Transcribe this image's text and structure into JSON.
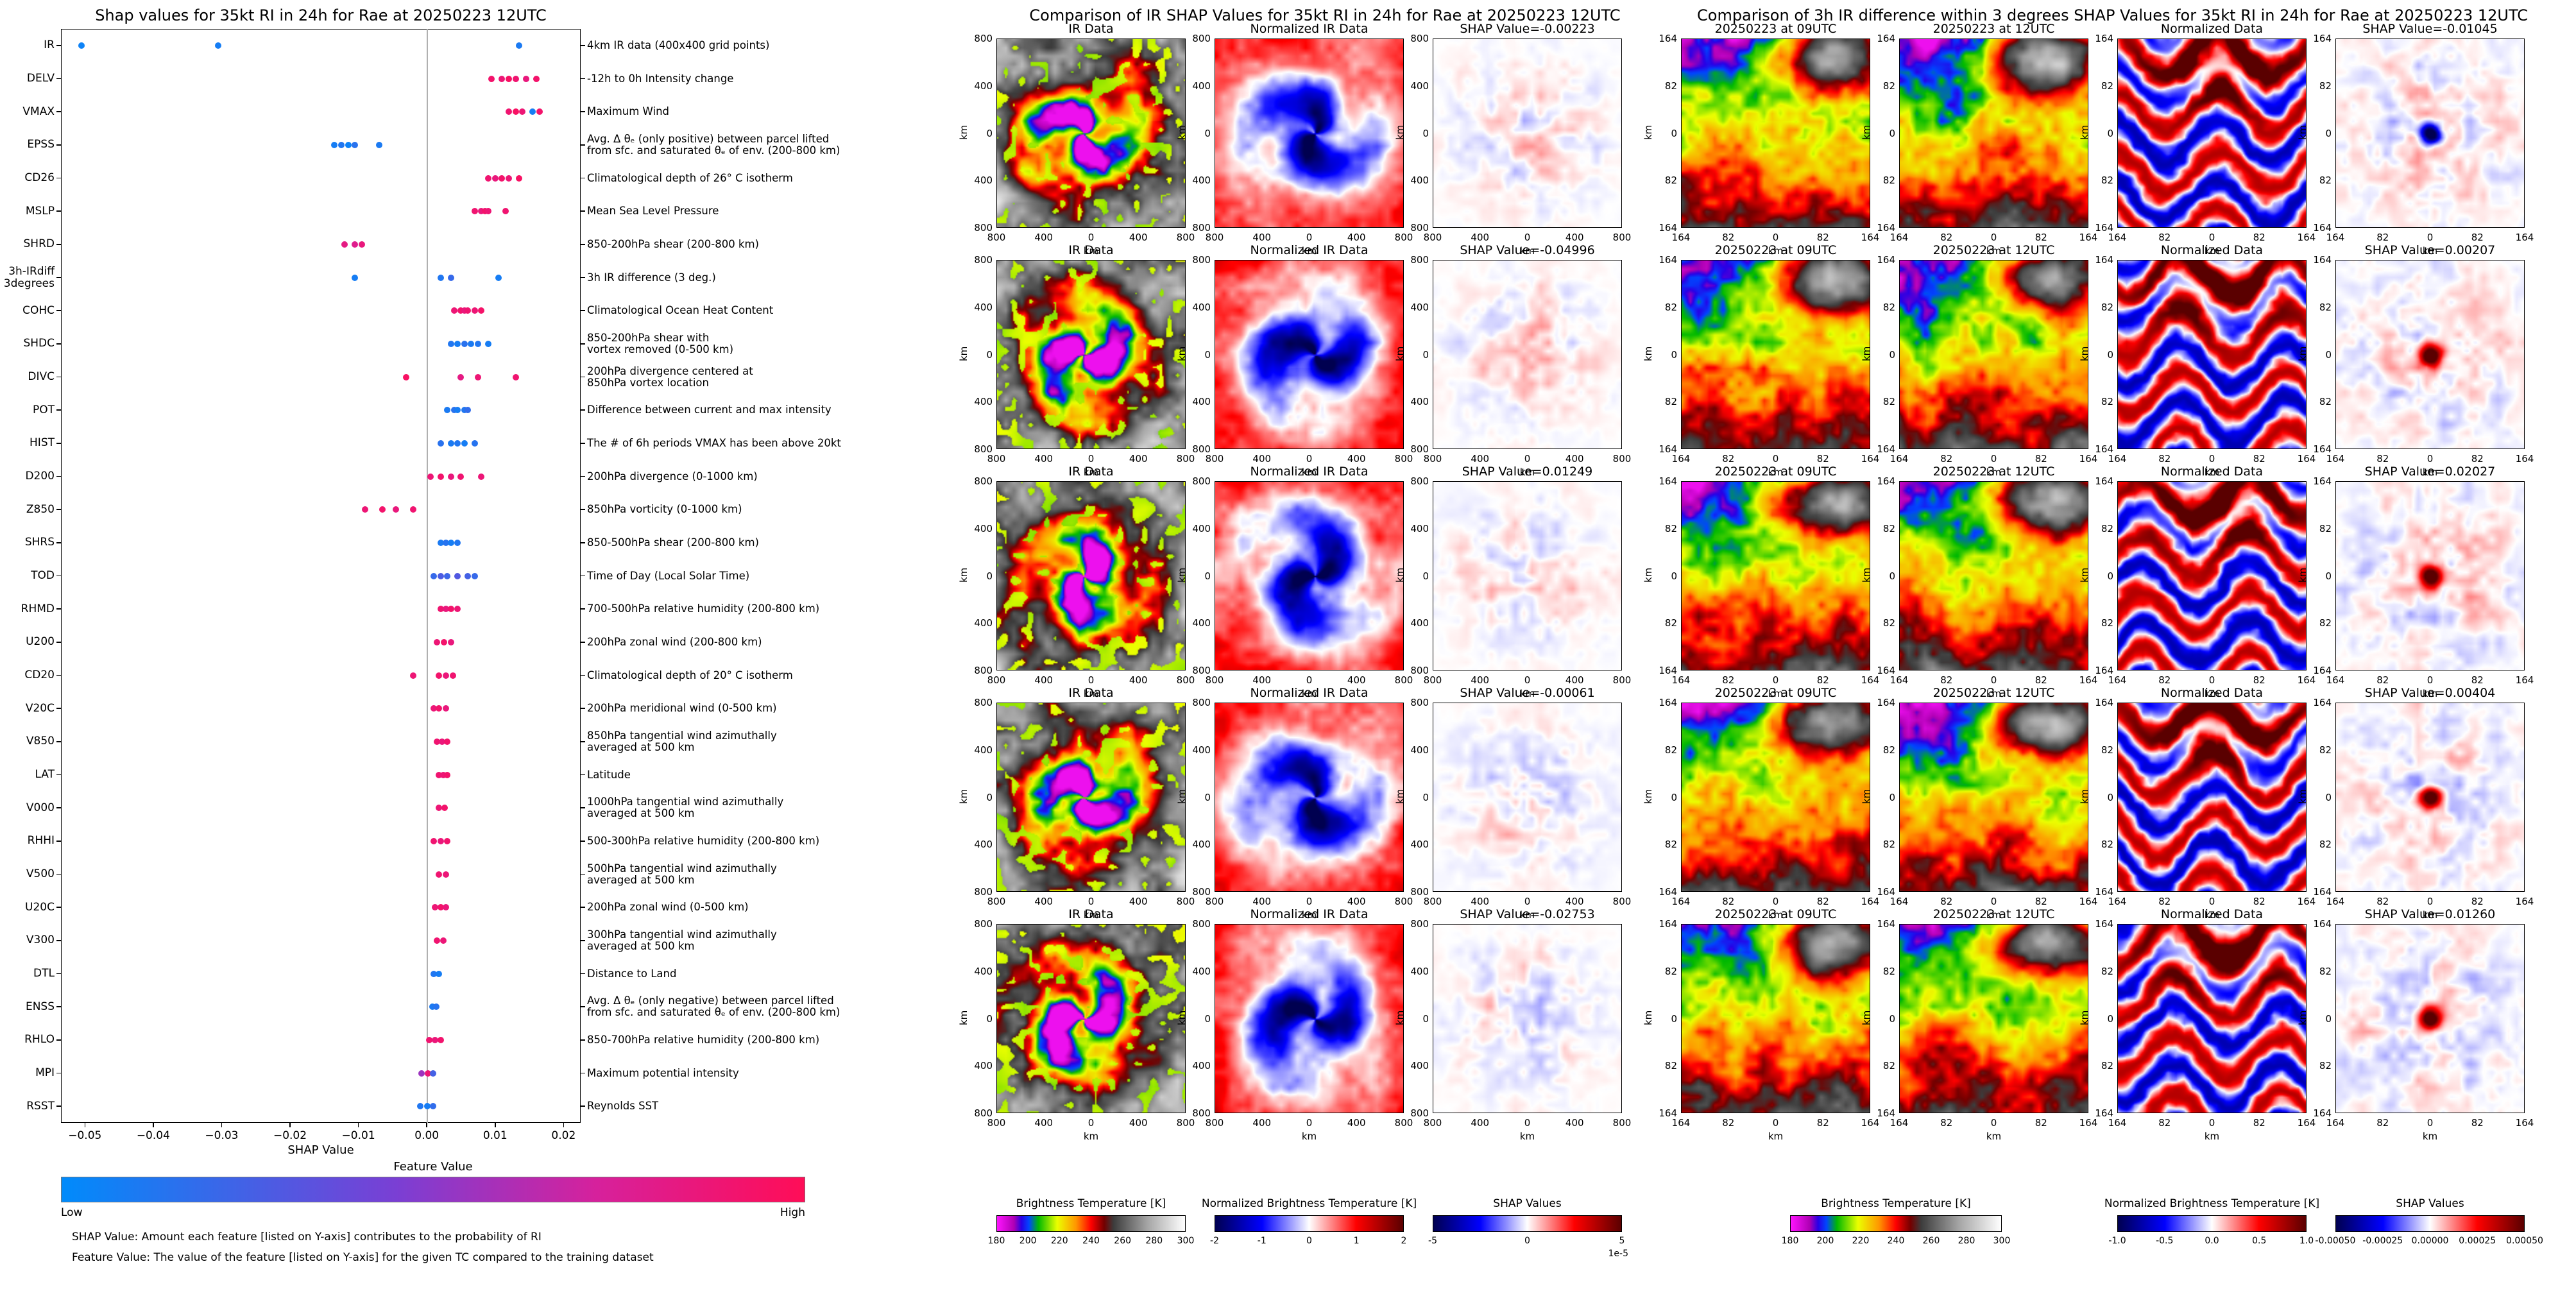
{
  "chart_data": [
    {
      "type": "scatter",
      "title": "Shap values for 35kt RI in 24h for Rae at 20250223 12UTC",
      "xlabel": "SHAP Value",
      "xlim": [
        -0.0535,
        0.0225
      ],
      "x_ticks": [
        -0.05,
        -0.04,
        -0.03,
        -0.02,
        -0.01,
        0.0,
        0.01,
        0.02
      ],
      "colorbar": {
        "title": "Feature Value",
        "low": "Low",
        "high": "High",
        "low_color": "#008bfb",
        "high_color": "#ff0d57"
      },
      "footnotes": [
        "SHAP Value: Amount each feature [listed on Y-axis] contributes to the probability of RI",
        "Feature Value: The value of the feature [listed on Y-axis] for the given TC compared to the training dataset"
      ],
      "features": [
        {
          "name": "IR",
          "desc": "4km IR data (400x400 grid points)",
          "points": [
            [
              -0.0505,
              0.05
            ],
            [
              -0.0305,
              0.08
            ],
            [
              0.0135,
              0.1
            ]
          ]
        },
        {
          "name": "DELV",
          "desc": "-12h to 0h Intensity change",
          "points": [
            [
              0.0095,
              0.92
            ],
            [
              0.011,
              0.88
            ],
            [
              0.012,
              0.95
            ],
            [
              0.013,
              0.9
            ],
            [
              0.0145,
              0.85
            ],
            [
              0.016,
              0.92
            ]
          ]
        },
        {
          "name": "VMAX",
          "desc": "Maximum Wind",
          "points": [
            [
              0.012,
              0.9
            ],
            [
              0.013,
              0.95
            ],
            [
              0.014,
              0.88
            ],
            [
              0.0155,
              0.08
            ],
            [
              0.0165,
              0.92
            ]
          ]
        },
        {
          "name": "EPSS",
          "desc": "Avg. Δ θₑ (only positive) between parcel lifted\nfrom sfc. and saturated θₑ of env. (200-800 km)",
          "points": [
            [
              -0.0135,
              0.08
            ],
            [
              -0.0125,
              0.12
            ],
            [
              -0.0115,
              0.05
            ],
            [
              -0.0105,
              0.15
            ],
            [
              -0.007,
              0.1
            ]
          ]
        },
        {
          "name": "CD26",
          "desc": "Climatological depth of 26° C isotherm",
          "points": [
            [
              0.009,
              0.9
            ],
            [
              0.01,
              0.85
            ],
            [
              0.011,
              0.92
            ],
            [
              0.012,
              0.88
            ],
            [
              0.0135,
              0.95
            ]
          ]
        },
        {
          "name": "MSLP",
          "desc": "Mean Sea Level Pressure",
          "points": [
            [
              0.007,
              0.9
            ],
            [
              0.008,
              0.85
            ],
            [
              0.0085,
              0.92
            ],
            [
              0.009,
              0.88
            ],
            [
              0.0115,
              0.9
            ]
          ]
        },
        {
          "name": "SHRD",
          "desc": "850-200hPa shear (200-800 km)",
          "points": [
            [
              -0.012,
              0.82
            ],
            [
              -0.0105,
              0.78
            ],
            [
              -0.0095,
              0.85
            ]
          ]
        },
        {
          "name": "3h-IRdiff\n3degrees",
          "desc": "3h IR difference (3 deg.)",
          "points": [
            [
              -0.0105,
              0.08
            ],
            [
              0.002,
              0.12
            ],
            [
              0.0035,
              0.2
            ],
            [
              0.0105,
              0.08
            ]
          ]
        },
        {
          "name": "COHC",
          "desc": "Climatological Ocean Heat Content",
          "points": [
            [
              0.004,
              0.88
            ],
            [
              0.005,
              0.92
            ],
            [
              0.0055,
              0.85
            ],
            [
              0.006,
              0.9
            ],
            [
              0.007,
              0.88
            ],
            [
              0.008,
              0.93
            ]
          ]
        },
        {
          "name": "SHDC",
          "desc": "850-200hPa shear with\nvortex removed (0-500 km)",
          "points": [
            [
              0.0035,
              0.12
            ],
            [
              0.0045,
              0.08
            ],
            [
              0.0055,
              0.15
            ],
            [
              0.0065,
              0.1
            ],
            [
              0.0075,
              0.12
            ],
            [
              0.009,
              0.08
            ]
          ]
        },
        {
          "name": "DIVC",
          "desc": "200hPa divergence centered at\n850hPa vortex location",
          "points": [
            [
              -0.003,
              0.95
            ],
            [
              0.005,
              0.82
            ],
            [
              0.0075,
              0.88
            ],
            [
              0.013,
              0.9
            ]
          ]
        },
        {
          "name": "POT",
          "desc": "Difference between current and max intensity",
          "points": [
            [
              0.003,
              0.1
            ],
            [
              0.004,
              0.15
            ],
            [
              0.0045,
              0.08
            ],
            [
              0.0055,
              0.12
            ],
            [
              0.006,
              0.18
            ]
          ]
        },
        {
          "name": "HIST",
          "desc": "The # of 6h periods VMAX has been above 20kt",
          "points": [
            [
              0.002,
              0.15
            ],
            [
              0.0035,
              0.1
            ],
            [
              0.0045,
              0.12
            ],
            [
              0.0055,
              0.08
            ],
            [
              0.007,
              0.14
            ]
          ]
        },
        {
          "name": "D200",
          "desc": "200hPa divergence (0-1000 km)",
          "points": [
            [
              0.0005,
              0.88
            ],
            [
              0.002,
              0.92
            ],
            [
              0.0035,
              0.85
            ],
            [
              0.005,
              0.9
            ],
            [
              0.008,
              0.87
            ]
          ]
        },
        {
          "name": "Z850",
          "desc": "850hPa vorticity (0-1000 km)",
          "points": [
            [
              -0.009,
              0.88
            ],
            [
              -0.0065,
              0.92
            ],
            [
              -0.0045,
              0.85
            ],
            [
              -0.002,
              0.9
            ]
          ]
        },
        {
          "name": "SHRS",
          "desc": "850-500hPa shear (200-800 km)",
          "points": [
            [
              0.002,
              0.1
            ],
            [
              0.0028,
              0.14
            ],
            [
              0.0035,
              0.08
            ],
            [
              0.0045,
              0.12
            ]
          ]
        },
        {
          "name": "TOD",
          "desc": "Time of Day (Local Solar Time)",
          "points": [
            [
              0.001,
              0.2
            ],
            [
              0.002,
              0.28
            ],
            [
              0.003,
              0.22
            ],
            [
              0.0045,
              0.3
            ],
            [
              0.006,
              0.25
            ],
            [
              0.007,
              0.2
            ]
          ]
        },
        {
          "name": "RHMD",
          "desc": "700-500hPa relative humidity (200-800 km)",
          "points": [
            [
              0.002,
              0.9
            ],
            [
              0.0028,
              0.85
            ],
            [
              0.0035,
              0.92
            ],
            [
              0.0045,
              0.88
            ]
          ]
        },
        {
          "name": "U200",
          "desc": "200hPa zonal wind (200-800 km)",
          "points": [
            [
              0.0015,
              0.88
            ],
            [
              0.0025,
              0.92
            ],
            [
              0.0035,
              0.85
            ]
          ]
        },
        {
          "name": "CD20",
          "desc": "Climatological depth of 20° C isotherm",
          "points": [
            [
              -0.002,
              0.88
            ],
            [
              0.0018,
              0.92
            ],
            [
              0.0028,
              0.86
            ],
            [
              0.0038,
              0.9
            ]
          ]
        },
        {
          "name": "V20C",
          "desc": "200hPa meridional wind (0-500 km)",
          "points": [
            [
              0.001,
              0.87
            ],
            [
              0.0018,
              0.92
            ],
            [
              0.0028,
              0.85
            ]
          ]
        },
        {
          "name": "V850",
          "desc": "850hPa tangential wind azimuthally\naveraged at 500 km",
          "points": [
            [
              0.0015,
              0.9
            ],
            [
              0.0022,
              0.86
            ],
            [
              0.003,
              0.92
            ]
          ]
        },
        {
          "name": "LAT",
          "desc": "Latitude",
          "points": [
            [
              0.0018,
              0.9
            ],
            [
              0.0024,
              0.88
            ],
            [
              0.003,
              0.92
            ]
          ]
        },
        {
          "name": "V000",
          "desc": "1000hPa tangential wind azimuthally\naveraged at 500 km",
          "points": [
            [
              0.0018,
              0.88
            ],
            [
              0.0026,
              0.92
            ]
          ]
        },
        {
          "name": "RHHI",
          "desc": "500-300hPa relative humidity (200-800 km)",
          "points": [
            [
              0.001,
              0.9
            ],
            [
              0.002,
              0.86
            ],
            [
              0.003,
              0.91
            ]
          ]
        },
        {
          "name": "V500",
          "desc": "500hPa tangential wind azimuthally\naveraged at 500 km",
          "points": [
            [
              0.0018,
              0.9
            ],
            [
              0.0028,
              0.87
            ]
          ]
        },
        {
          "name": "U20C",
          "desc": "200hPa zonal wind (0-500 km)",
          "points": [
            [
              0.0012,
              0.88
            ],
            [
              0.002,
              0.92
            ],
            [
              0.0028,
              0.86
            ]
          ]
        },
        {
          "name": "V300",
          "desc": "300hPa tangential wind azimuthally\naveraged at 500 km",
          "points": [
            [
              0.0015,
              0.9
            ],
            [
              0.0024,
              0.87
            ]
          ]
        },
        {
          "name": "DTL",
          "desc": "Distance to Land",
          "points": [
            [
              0.001,
              0.12
            ],
            [
              0.0018,
              0.08
            ]
          ]
        },
        {
          "name": "ENSS",
          "desc": "Avg. Δ θₑ (only negative) between parcel lifted\nfrom sfc. and saturated θₑ of env. (200-800 km)",
          "points": [
            [
              0.0008,
              0.1
            ],
            [
              0.0014,
              0.14
            ]
          ]
        },
        {
          "name": "RHLO",
          "desc": "850-700hPa relative humidity (200-800 km)",
          "points": [
            [
              0.0004,
              0.9
            ],
            [
              0.0012,
              0.86
            ],
            [
              0.002,
              0.91
            ]
          ]
        },
        {
          "name": "MPI",
          "desc": "Maximum potential intensity",
          "points": [
            [
              -0.0008,
              0.55
            ],
            [
              0.0002,
              0.88
            ],
            [
              0.0009,
              0.25
            ]
          ]
        },
        {
          "name": "RSST",
          "desc": "Reynolds SST",
          "points": [
            [
              -0.001,
              0.12
            ],
            [
              0.0001,
              0.08
            ],
            [
              0.0009,
              0.18
            ]
          ]
        }
      ]
    },
    {
      "type": "image-grid",
      "title": "Comparison of IR SHAP Values for 35kt RI in 24h for Rae at 20250223 12UTC",
      "columns": [
        "IR Data",
        "Normalized IR Data"
      ],
      "rows": [
        {
          "label": "SHAP Value=-0.00223",
          "value": -0.00223
        },
        {
          "label": "SHAP Value=-0.04996",
          "value": -0.04996
        },
        {
          "label": "SHAP Value=0.01249",
          "value": 0.01249
        },
        {
          "label": "SHAP Value=-0.00061",
          "value": -0.00061
        },
        {
          "label": "SHAP Value=-0.02753",
          "value": -0.02753
        }
      ],
      "axis_label": "km",
      "x_ticks": [
        "800",
        "400",
        "0",
        "400",
        "800"
      ],
      "y_ticks": [
        "800",
        "400",
        "0",
        "400",
        "800"
      ],
      "colorbars": [
        {
          "label": "Brightness Temperature [K]",
          "ticks": [
            "180",
            "200",
            "220",
            "240",
            "260",
            "280",
            "300"
          ],
          "palette": "ir"
        },
        {
          "label": "Normalized Brightness Temperature [K]",
          "ticks": [
            "-2",
            "-1",
            "0",
            "1",
            "2"
          ],
          "palette": "seismic"
        },
        {
          "label": "SHAP Values",
          "ticks": [
            "-5",
            "0",
            "5"
          ],
          "offset": "1e-5",
          "palette": "seismic"
        }
      ]
    },
    {
      "type": "image-grid",
      "title": "Comparison of 3h IR difference within 3 degrees SHAP Values for 35kt RI in 24h for Rae at 20250223 12UTC",
      "columns": [
        "20250223 at 09UTC",
        "20250223 at 12UTC",
        "Normalized Data"
      ],
      "rows": [
        {
          "label": "SHAP Value=-0.01045",
          "value": -0.01045
        },
        {
          "label": "SHAP Value=0.00207",
          "value": 0.00207
        },
        {
          "label": "SHAP Value=0.02027",
          "value": 0.02027
        },
        {
          "label": "SHAP Value=0.00404",
          "value": 0.00404
        },
        {
          "label": "SHAP Value=0.01260",
          "value": 0.0126
        }
      ],
      "axis_label": "km",
      "x_ticks": [
        "164",
        "82",
        "0",
        "82",
        "164"
      ],
      "y_ticks": [
        "164",
        "82",
        "0",
        "82",
        "164"
      ],
      "colorbars": [
        {
          "label": "Brightness Temperature [K]",
          "ticks": [
            "180",
            "200",
            "220",
            "240",
            "260",
            "280",
            "300"
          ],
          "palette": "ir"
        },
        {
          "label": "Normalized Brightness Temperature [K]",
          "ticks": [
            "-1.0",
            "-0.5",
            "0.0",
            "0.5",
            "1.0"
          ],
          "palette": "seismic"
        },
        {
          "label": "SHAP Values",
          "ticks": [
            "-0.00050",
            "-0.00025",
            "0.00000",
            "0.00025",
            "0.00050"
          ],
          "palette": "seismic"
        }
      ]
    }
  ]
}
